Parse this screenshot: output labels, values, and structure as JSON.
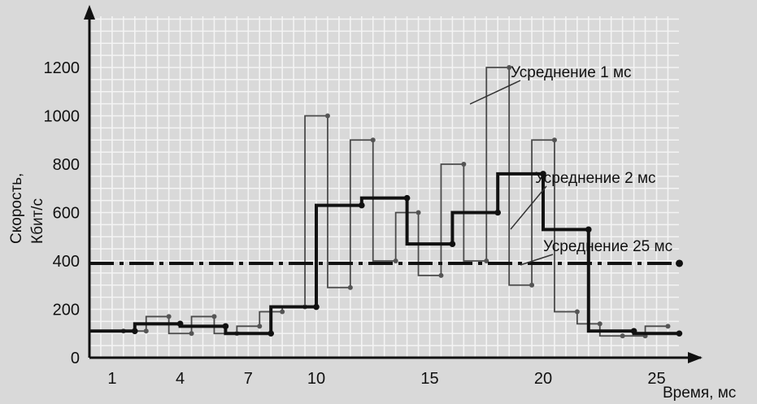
{
  "chart_data": {
    "type": "line",
    "step": true,
    "xlabel": "Время, мс",
    "ylabel_line1": "Скорость,",
    "ylabel_line2": "Кбит/с",
    "xlim": [
      0,
      26
    ],
    "ylim": [
      0,
      1300
    ],
    "x_ticks": [
      1,
      4,
      7,
      10,
      15,
      20,
      25
    ],
    "y_ticks": [
      0,
      200,
      400,
      600,
      800,
      1000,
      1200
    ],
    "grid": true,
    "series": [
      {
        "name": "Усреднение 1 мс",
        "style": "thin-solid",
        "x": [
          1,
          2,
          3,
          4,
          5,
          6,
          7,
          8,
          9,
          10,
          11,
          12,
          13,
          14,
          15,
          16,
          17,
          18,
          19,
          20,
          21,
          22,
          23,
          24,
          25
        ],
        "values": [
          110,
          110,
          170,
          100,
          170,
          100,
          130,
          190,
          210,
          1000,
          290,
          900,
          400,
          600,
          340,
          800,
          400,
          1200,
          300,
          900,
          190,
          140,
          90,
          90,
          130
        ]
      },
      {
        "name": "Усреднение 2 мс",
        "style": "thick-solid",
        "x": [
          1,
          3,
          5,
          7,
          9,
          11,
          13,
          15,
          17,
          19,
          21,
          23,
          25
        ],
        "values": [
          110,
          140,
          130,
          100,
          210,
          630,
          660,
          470,
          600,
          760,
          530,
          110,
          100
        ]
      },
      {
        "name": "Усреднение 25 мс",
        "style": "dash-dot",
        "x": [
          0,
          25
        ],
        "values": [
          390,
          390
        ]
      }
    ]
  }
}
